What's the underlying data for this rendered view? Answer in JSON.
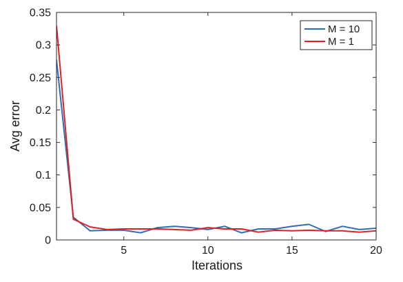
{
  "chart_data": {
    "type": "line",
    "xlabel": "Iterations",
    "ylabel": "Avg error",
    "xlim": [
      1,
      20
    ],
    "ylim": [
      0,
      0.35
    ],
    "x_ticks": [
      5,
      10,
      15,
      20
    ],
    "x_tick_labels": [
      "5",
      "10",
      "15",
      "20"
    ],
    "y_ticks": [
      0,
      0.05,
      0.1,
      0.15,
      0.2,
      0.25,
      0.3,
      0.35
    ],
    "y_tick_labels": [
      "0",
      "0.05",
      "0.1",
      "0.15",
      "0.2",
      "0.25",
      "0.3",
      "0.35"
    ],
    "grid": false,
    "legend_position": "top-right",
    "x": [
      1,
      2,
      3,
      4,
      5,
      6,
      7,
      8,
      9,
      10,
      11,
      12,
      13,
      14,
      15,
      16,
      17,
      18,
      19,
      20
    ],
    "series": [
      {
        "name": "M = 10",
        "color": "#2a6fb5",
        "values": [
          0.277,
          0.035,
          0.014,
          0.015,
          0.015,
          0.011,
          0.019,
          0.021,
          0.019,
          0.016,
          0.021,
          0.011,
          0.017,
          0.017,
          0.021,
          0.024,
          0.013,
          0.021,
          0.016,
          0.018
        ]
      },
      {
        "name": "M = 1",
        "color": "#e02020",
        "values": [
          0.33,
          0.032,
          0.02,
          0.016,
          0.017,
          0.017,
          0.017,
          0.016,
          0.015,
          0.019,
          0.017,
          0.017,
          0.012,
          0.015,
          0.014,
          0.015,
          0.014,
          0.014,
          0.012,
          0.014
        ]
      }
    ]
  }
}
